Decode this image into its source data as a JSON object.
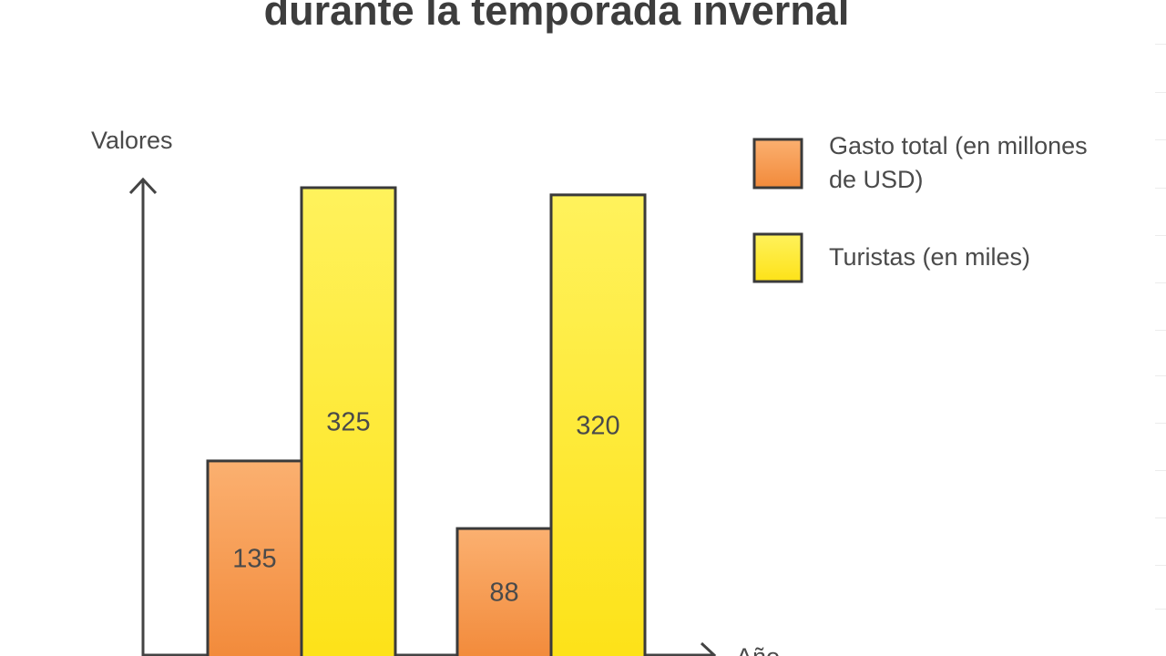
{
  "chart_data": {
    "type": "bar",
    "title": "durante la temporada invernal",
    "ylabel": "Valores",
    "xlabel": "Año",
    "categories": [
      "",
      ""
    ],
    "series": [
      {
        "name": "Gasto total (en millones de USD)",
        "values": [
          135,
          88
        ],
        "color": "#f7a050"
      },
      {
        "name": "Turistas (en miles)",
        "values": [
          325,
          320
        ],
        "color": "#fde52e"
      }
    ],
    "colors": {
      "orange_top": "#fbb070",
      "orange_bottom": "#f28a3a",
      "yellow_top": "#fff25c",
      "yellow_bottom": "#fde218",
      "outline": "#3a3a3a"
    }
  }
}
